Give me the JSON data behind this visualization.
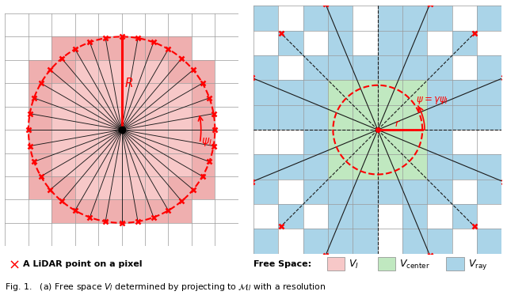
{
  "fig_width": 6.4,
  "fig_height": 3.73,
  "dpi": 100,
  "bg_color": "#ffffff",
  "left_panel": {
    "R": 4.0,
    "n_rays": 36,
    "fill_color": "#f7c8c8",
    "boundary_fill_color": "#e89898",
    "circle_color": "#ff0000",
    "ray_color": "#1a1a1a",
    "n_cells": 10,
    "cell_size": 1.0,
    "grid_color": "#999999",
    "grid_lw": 0.5
  },
  "right_panel": {
    "R": 5.5,
    "r": 1.8,
    "n_rays": 16,
    "fill_color_ray": "#aad4e8",
    "fill_color_center": "#c0e8c0",
    "circle_color": "#ff0000",
    "ray_color": "#1a1a1a",
    "n_cells": 10,
    "cell_size": 1.0,
    "grid_color": "#999999",
    "grid_lw": 0.5
  },
  "legend_VI_color": "#f7c8c8",
  "legend_Vcenter_color": "#c0e8c0",
  "legend_Vray_color": "#aad4e8",
  "caption": "Fig. 1.   (a) Free space $\\boldsymbol{V_I}$ determined by projecting to $\\mathcal{M}_I$ with a resolution"
}
